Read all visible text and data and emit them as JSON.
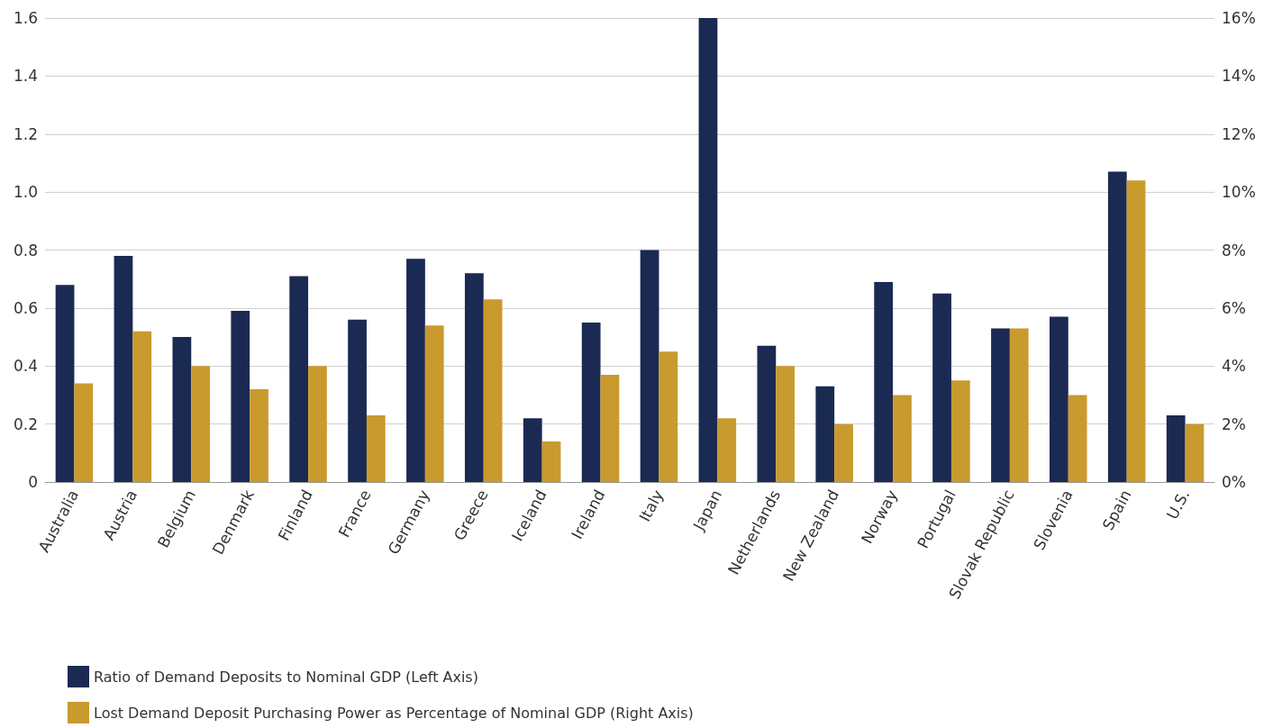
{
  "chart_data": {
    "type": "bar",
    "categories": [
      "Australia",
      "Austria",
      "Belgium",
      "Denmark",
      "Finland",
      "France",
      "Germany",
      "Greece",
      "Iceland",
      "Ireland",
      "Italy",
      "Japan",
      "Netherlands",
      "New Zealand",
      "Norway",
      "Portugal",
      "Slovak Republic",
      "Slovenia",
      "Spain",
      "U.S."
    ],
    "series": [
      {
        "name": "Ratio of Demand Deposits to Nominal GDP (Left Axis)",
        "color": "#1b2a52",
        "values": [
          0.68,
          0.78,
          0.5,
          0.59,
          0.71,
          0.56,
          0.77,
          0.72,
          0.22,
          0.55,
          0.8,
          1.6,
          0.47,
          0.33,
          0.69,
          0.65,
          0.53,
          0.57,
          1.07,
          0.23
        ]
      },
      {
        "name": "Lost Demand Deposit Purchasing Power as Percentage of Nominal GDP (Right Axis)",
        "color": "#c99a2e",
        "axis": "y2",
        "values": [
          3.4,
          5.2,
          4.0,
          3.2,
          4.0,
          2.3,
          5.4,
          6.3,
          1.4,
          3.7,
          4.5,
          2.2,
          4.0,
          2.0,
          3.0,
          3.5,
          5.3,
          3.0,
          10.4,
          2.0
        ]
      }
    ],
    "ylim": [
      0,
      1.6
    ],
    "yticks": [
      0,
      0.2,
      0.4,
      0.6,
      0.8,
      {
        "value": 1.0,
        "label": "1.0"
      },
      1.2,
      1.4,
      1.6
    ],
    "y2lim": [
      0,
      16
    ],
    "y2ticks": [
      {
        "value": 0,
        "label": "0%"
      },
      {
        "value": 2,
        "label": "2%"
      },
      {
        "value": 4,
        "label": "4%"
      },
      {
        "value": 6,
        "label": "6%"
      },
      {
        "value": 8,
        "label": "8%"
      },
      {
        "value": 10,
        "label": "10%"
      },
      {
        "value": 12,
        "label": "12%"
      },
      {
        "value": 14,
        "label": "14%"
      },
      {
        "value": 16,
        "label": "16%"
      }
    ],
    "grid": "y",
    "legend": "bottom left"
  }
}
